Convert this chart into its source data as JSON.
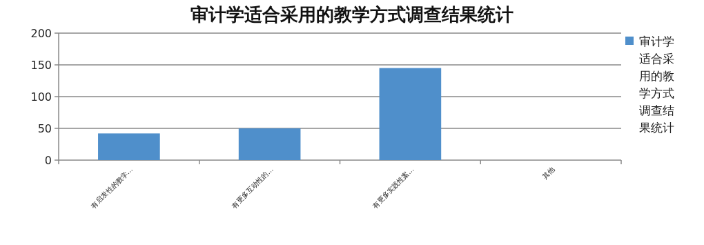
{
  "chart_data": {
    "type": "bar",
    "title": "审计学适合采用的教学方式调查结果统计",
    "categories": [
      "有启发性的教学…",
      "有更多互动性的…",
      "有更多实践性案…",
      "其他"
    ],
    "series": [
      {
        "name": "审计学适合采用的教学方式调查结果统计",
        "color": "#4f8fcb",
        "values": [
          42,
          50,
          145,
          0
        ]
      }
    ],
    "ylim": [
      0,
      200
    ],
    "yticks": [
      0,
      50,
      100,
      150,
      200
    ],
    "grid": "y",
    "legend": "right"
  }
}
